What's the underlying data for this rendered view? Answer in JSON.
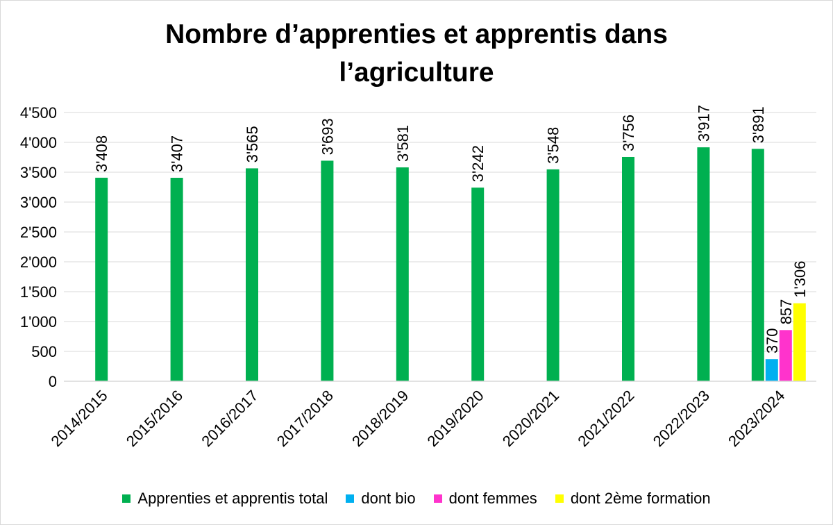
{
  "chart_data": {
    "type": "bar",
    "title_lines": [
      "Nombre d’apprenties et apprentis dans",
      "l’agriculture"
    ],
    "categories": [
      "2014/2015",
      "2015/2016",
      "2016/2017",
      "2017/2018",
      "2018/2019",
      "2019/2020",
      "2020/2021",
      "2021/2022",
      "2022/2023",
      "2023/2024"
    ],
    "series": [
      {
        "name": "Apprenties et apprentis total",
        "color": "#00b050",
        "values": [
          3408,
          3407,
          3565,
          3693,
          3581,
          3242,
          3548,
          3756,
          3917,
          3891
        ],
        "labels": [
          "3'408",
          "3'407",
          "3'565",
          "3'693",
          "3'581",
          "3'242",
          "3'548",
          "3'756",
          "3'917",
          "3'891"
        ]
      },
      {
        "name": "dont bio",
        "color": "#00b0f0",
        "values": [
          null,
          null,
          null,
          null,
          null,
          null,
          null,
          null,
          null,
          370
        ],
        "labels": [
          "",
          "",
          "",
          "",
          "",
          "",
          "",
          "",
          "",
          "370"
        ]
      },
      {
        "name": "dont femmes",
        "color": "#ff33cc",
        "values": [
          null,
          null,
          null,
          null,
          null,
          null,
          null,
          null,
          null,
          857
        ],
        "labels": [
          "",
          "",
          "",
          "",
          "",
          "",
          "",
          "",
          "",
          "857"
        ]
      },
      {
        "name": "dont 2ème formation",
        "color": "#ffff00",
        "values": [
          null,
          null,
          null,
          null,
          null,
          null,
          null,
          null,
          null,
          1306
        ],
        "labels": [
          "",
          "",
          "",
          "",
          "",
          "",
          "",
          "",
          "",
          "1'306"
        ]
      }
    ],
    "y_ticks": [
      0,
      500,
      1000,
      1500,
      2000,
      2500,
      3000,
      3500,
      4000,
      4500
    ],
    "y_tick_labels": [
      "0",
      "500",
      "1'000",
      "1'500",
      "2'000",
      "2'500",
      "3'000",
      "3'500",
      "4'000",
      "4'500"
    ],
    "ylim": [
      0,
      4500
    ],
    "grid": true,
    "legend_position": "bottom"
  }
}
